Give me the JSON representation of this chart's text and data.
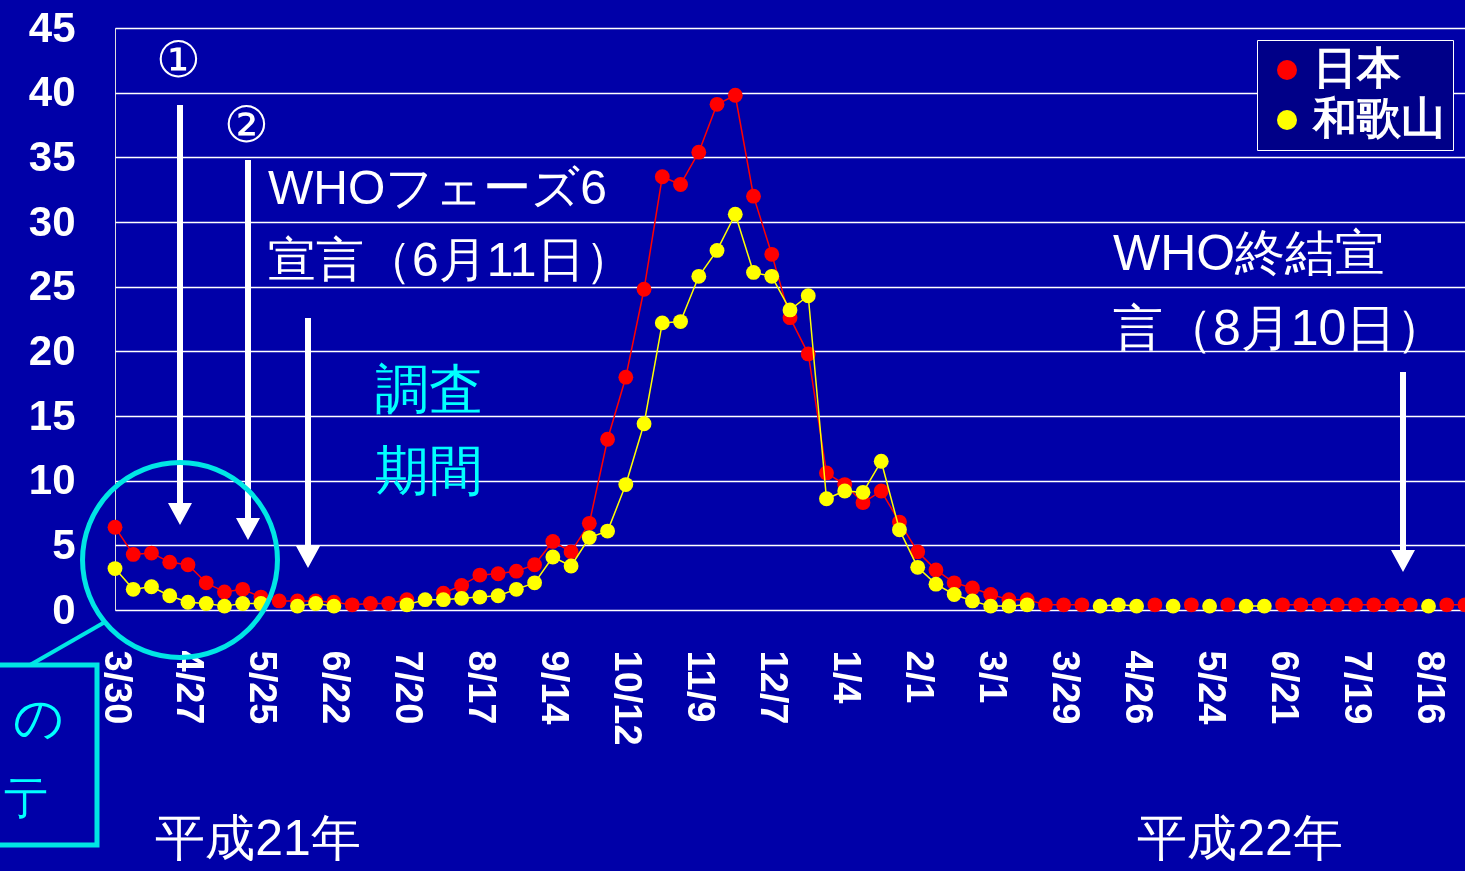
{
  "chart_data": {
    "type": "line",
    "categories": [
      "3/30",
      null,
      null,
      null,
      "4/27",
      null,
      null,
      null,
      "5/25",
      null,
      null,
      null,
      "6/22",
      null,
      null,
      null,
      "7/20",
      null,
      null,
      null,
      "8/17",
      null,
      null,
      null,
      "9/14",
      null,
      null,
      null,
      "10/12",
      null,
      null,
      null,
      "11/9",
      null,
      null,
      null,
      "12/7",
      null,
      null,
      null,
      "1/4",
      null,
      null,
      null,
      "2/1",
      null,
      null,
      null,
      "3/1",
      null,
      null,
      null,
      "3/29",
      null,
      null,
      null,
      "4/26",
      null,
      null,
      null,
      "5/24",
      null,
      null,
      null,
      "6/21",
      null,
      null,
      null,
      "7/19",
      null,
      null,
      null,
      "8/16",
      null,
      null
    ],
    "series": [
      {
        "name": "日本",
        "color": "#ff0000",
        "values": [
          6.4,
          4.3,
          4.4,
          3.7,
          3.5,
          2.1,
          1.4,
          1.6,
          1.0,
          0.7,
          0.7,
          0.7,
          0.6,
          0.4,
          0.5,
          0.5,
          0.8,
          null,
          1.3,
          1.9,
          2.7,
          2.8,
          3.0,
          3.5,
          5.3,
          4.5,
          6.7,
          13.2,
          18.0,
          24.8,
          33.5,
          32.9,
          35.4,
          39.1,
          39.8,
          32.0,
          27.5,
          22.6,
          19.8,
          10.6,
          9.7,
          8.3,
          9.2,
          6.8,
          4.5,
          3.1,
          2.1,
          1.7,
          1.2,
          0.8,
          0.8,
          0.4,
          0.4,
          0.4,
          null,
          null,
          null,
          0.4,
          null,
          0.4,
          null,
          0.4,
          null,
          null,
          0.4,
          0.4,
          0.4,
          0.4,
          0.4,
          0.4,
          0.4,
          0.4,
          null,
          0.4,
          0.4
        ]
      },
      {
        "name": "和歌山",
        "color": "#ffff00",
        "values": [
          3.2,
          1.6,
          1.8,
          1.1,
          0.6,
          0.5,
          0.3,
          0.5,
          0.5,
          null,
          0.3,
          0.5,
          0.3,
          null,
          null,
          null,
          0.4,
          0.8,
          0.8,
          0.9,
          1.0,
          1.1,
          1.6,
          2.1,
          4.1,
          3.4,
          5.6,
          6.1,
          9.7,
          14.4,
          22.2,
          22.3,
          25.8,
          27.8,
          30.6,
          26.1,
          25.8,
          23.2,
          24.3,
          8.6,
          9.2,
          9.1,
          11.5,
          6.2,
          3.3,
          2.0,
          1.2,
          0.7,
          0.3,
          0.3,
          0.4,
          null,
          null,
          null,
          0.3,
          0.4,
          0.3,
          null,
          0.3,
          null,
          0.3,
          null,
          0.3,
          0.3,
          null,
          null,
          null,
          null,
          null,
          null,
          null,
          null,
          0.3,
          null,
          null
        ]
      }
    ],
    "ylim": [
      0,
      45
    ],
    "yticks": [
      0,
      5,
      10,
      15,
      20,
      25,
      30,
      35,
      40,
      45
    ],
    "grid": "y",
    "legend": "top right",
    "marker": "circle",
    "line_style": "solid",
    "annotations": [
      "①",
      "②",
      "WHOフェーズ6宣言（6月11日）",
      "調査期間",
      "WHO終結宣言（8月10日）",
      "平成21年",
      "平成22年",
      "の",
      "亍"
    ]
  }
}
